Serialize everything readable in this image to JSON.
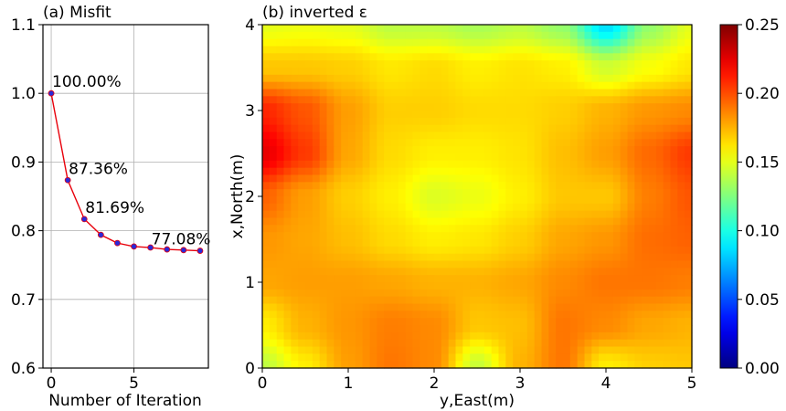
{
  "chart_data": [
    {
      "type": "line",
      "title": "(a) Misfit",
      "xlabel": "Number of Iteration",
      "ylabel": "",
      "xlim": [
        -0.5,
        9.5
      ],
      "ylim": [
        0.6,
        1.1
      ],
      "xticks": [
        "0",
        "5"
      ],
      "xtick_values": [
        0,
        5
      ],
      "yticks": [
        "0.6",
        "0.7",
        "0.8",
        "0.9",
        "1.0",
        "1.1"
      ],
      "ytick_values": [
        0.6,
        0.7,
        0.8,
        0.9,
        1.0,
        1.1
      ],
      "grid": true,
      "x": [
        0,
        1,
        2,
        3,
        4,
        5,
        6,
        7,
        8,
        9
      ],
      "y": [
        1.0,
        0.8736,
        0.8169,
        0.794,
        0.782,
        0.777,
        0.7755,
        0.7728,
        0.7718,
        0.7708
      ],
      "line_color": "#e8000b",
      "marker_color": "#2a2ad8",
      "annotations": [
        {
          "text": "100.00%",
          "x": 0,
          "y": 1.0
        },
        {
          "text": "87.36%",
          "x": 1,
          "y": 0.8736
        },
        {
          "text": "81.69%",
          "x": 2,
          "y": 0.8169
        },
        {
          "text": "77.08%",
          "x": 6,
          "y": 0.7708
        }
      ]
    },
    {
      "type": "heatmap",
      "title": "(b) inverted ε",
      "xlabel": "y,East(m)",
      "ylabel": "x,North(m)",
      "xlim": [
        0,
        5
      ],
      "ylim": [
        0,
        4
      ],
      "xticks": [
        "0",
        "1",
        "2",
        "3",
        "4",
        "5"
      ],
      "xtick_values": [
        0,
        1,
        2,
        3,
        4,
        5
      ],
      "yticks": [
        "0",
        "1",
        "2",
        "3",
        "4"
      ],
      "ytick_values": [
        0,
        1,
        2,
        3,
        4
      ],
      "colorbar": {
        "ticks": [
          "0.00",
          "0.05",
          "0.10",
          "0.15",
          "0.20",
          "0.25"
        ],
        "tick_values": [
          0,
          0.05,
          0.1,
          0.15,
          0.2,
          0.25
        ],
        "range": [
          0,
          0.25
        ],
        "colormap": "jet"
      },
      "x_nodes": [
        0,
        0.5,
        1,
        1.5,
        2,
        2.5,
        3,
        3.5,
        4,
        4.5,
        5
      ],
      "y_nodes": [
        4,
        3.5,
        3,
        2.5,
        2,
        1.5,
        1,
        0.5,
        0
      ],
      "values": [
        [
          0.15,
          0.152,
          0.15,
          0.14,
          0.14,
          0.135,
          0.14,
          0.13,
          0.085,
          0.13,
          0.15
        ],
        [
          0.17,
          0.17,
          0.168,
          0.162,
          0.165,
          0.16,
          0.163,
          0.16,
          0.145,
          0.155,
          0.162
        ],
        [
          0.21,
          0.198,
          0.18,
          0.168,
          0.168,
          0.165,
          0.165,
          0.168,
          0.175,
          0.182,
          0.185
        ],
        [
          0.225,
          0.205,
          0.178,
          0.165,
          0.16,
          0.16,
          0.163,
          0.172,
          0.18,
          0.193,
          0.205
        ],
        [
          0.195,
          0.18,
          0.168,
          0.16,
          0.148,
          0.152,
          0.16,
          0.17,
          0.17,
          0.188,
          0.198
        ],
        [
          0.182,
          0.178,
          0.172,
          0.165,
          0.16,
          0.162,
          0.168,
          0.178,
          0.182,
          0.192,
          0.195
        ],
        [
          0.178,
          0.18,
          0.18,
          0.178,
          0.175,
          0.175,
          0.178,
          0.185,
          0.19,
          0.19,
          0.188
        ],
        [
          0.16,
          0.175,
          0.182,
          0.188,
          0.185,
          0.17,
          0.172,
          0.19,
          0.185,
          0.178,
          0.175
        ],
        [
          0.14,
          0.16,
          0.18,
          0.19,
          0.185,
          0.142,
          0.175,
          0.19,
          0.16,
          0.168,
          0.17
        ]
      ]
    }
  ]
}
